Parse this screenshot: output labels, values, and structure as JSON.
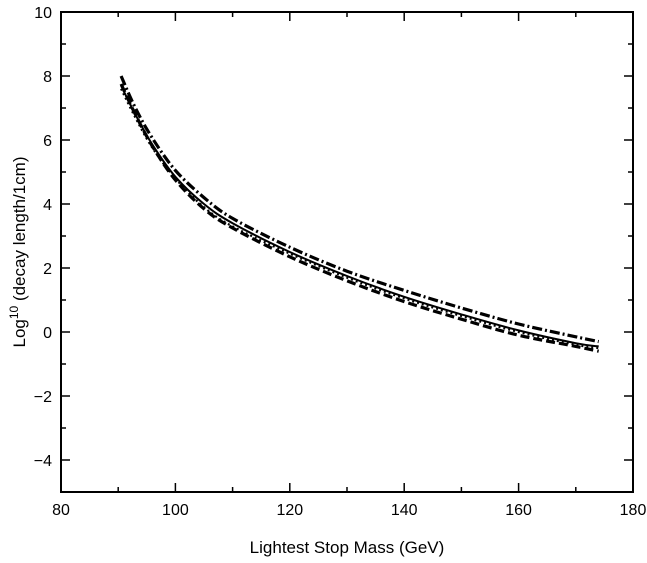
{
  "chart_data": {
    "type": "line",
    "xlabel": "Lightest Stop Mass  (GeV)",
    "ylabel": {
      "prefix": "Log",
      "superscript": "10",
      "suffix": " (decay length/1cm)"
    },
    "xlim": [
      80,
      180
    ],
    "ylim": [
      -5,
      10
    ],
    "x_ticks": [
      80,
      100,
      120,
      140,
      160,
      180
    ],
    "x_tick_labels": [
      "80",
      "100",
      "120",
      "140",
      "160",
      "180"
    ],
    "y_ticks": [
      -4,
      -2,
      0,
      2,
      4,
      6,
      8,
      10
    ],
    "y_tick_labels": [
      "−4",
      "−2",
      "0",
      "2",
      "4",
      "6",
      "8",
      "10"
    ],
    "grid": false,
    "legend": "none",
    "line_color": "#000000",
    "series": [
      {
        "style": "solid",
        "x": [
          90.5,
          93,
          96,
          100,
          105,
          110,
          120,
          130,
          140,
          150,
          160,
          170,
          174
        ],
        "y": [
          7.7,
          6.8,
          5.85,
          4.85,
          4.0,
          3.4,
          2.5,
          1.75,
          1.1,
          0.55,
          0.05,
          -0.35,
          -0.45
        ]
      },
      {
        "style": "dashed",
        "x": [
          90.5,
          93,
          96,
          100,
          105,
          110,
          120,
          130,
          140,
          150,
          160,
          170,
          174
        ],
        "y": [
          7.75,
          6.8,
          5.8,
          4.75,
          3.85,
          3.25,
          2.35,
          1.6,
          0.95,
          0.4,
          -0.1,
          -0.45,
          -0.6
        ]
      },
      {
        "style": "dash-dot",
        "x": [
          90.5,
          93,
          96,
          100,
          105,
          110,
          120,
          130,
          140,
          150,
          160,
          170,
          174
        ],
        "y": [
          8.0,
          7.0,
          6.05,
          5.05,
          4.2,
          3.55,
          2.65,
          1.9,
          1.3,
          0.75,
          0.25,
          -0.15,
          -0.3
        ]
      },
      {
        "style": "dotted",
        "x": [
          90.5,
          93,
          96,
          100,
          105,
          110,
          120,
          130,
          140,
          150,
          160,
          170,
          174
        ],
        "y": [
          7.6,
          6.7,
          5.75,
          4.8,
          3.9,
          3.3,
          2.45,
          1.7,
          1.05,
          0.5,
          0.0,
          -0.4,
          -0.5
        ]
      }
    ]
  }
}
